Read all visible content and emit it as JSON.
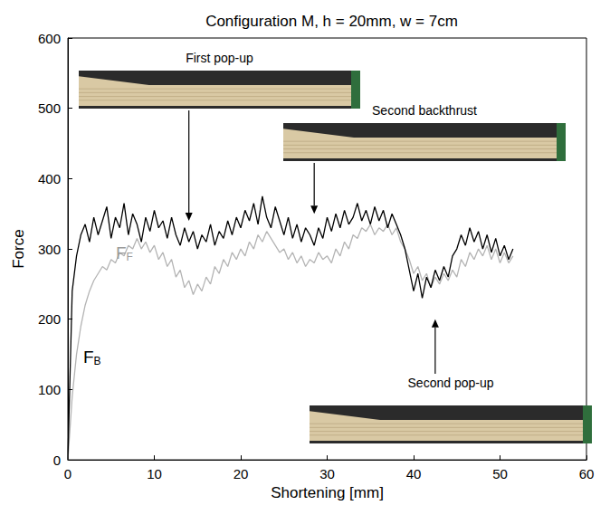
{
  "chart_data": {
    "type": "line",
    "title": "Configuration M, h = 20mm, w = 7cm",
    "x_label": "Shortening [mm]",
    "y_label": "Force",
    "xlim": [
      0,
      60
    ],
    "xticks": [
      0,
      10,
      20,
      30,
      40,
      50,
      60
    ],
    "ylim": [
      0,
      600
    ],
    "yticks": [
      0,
      100,
      200,
      300,
      400,
      500,
      600
    ],
    "grid": false,
    "x": [
      0,
      0.5,
      1,
      1.5,
      2,
      2.5,
      3,
      3.5,
      4,
      4.5,
      5,
      5.5,
      6,
      6.5,
      7,
      7.5,
      8,
      8.5,
      9,
      9.5,
      10,
      10.5,
      11,
      11.5,
      12,
      12.5,
      13,
      13.5,
      14,
      14.5,
      15,
      15.5,
      16,
      16.5,
      17,
      17.5,
      18,
      18.5,
      19,
      19.5,
      20,
      20.5,
      21,
      21.5,
      22,
      22.5,
      23,
      23.5,
      24,
      24.5,
      25,
      25.5,
      26,
      26.5,
      27,
      27.5,
      28,
      28.5,
      29,
      29.5,
      30,
      30.5,
      31,
      31.5,
      32,
      32.5,
      33,
      33.5,
      34,
      34.5,
      35,
      35.5,
      36,
      36.5,
      37,
      37.5,
      38,
      38.5,
      39,
      39.5,
      40,
      40.5,
      41,
      41.5,
      42,
      42.5,
      43,
      43.5,
      44,
      44.5,
      45,
      45.5,
      46,
      46.5,
      47,
      47.5,
      48,
      48.5,
      49,
      49.5,
      50,
      50.5,
      51,
      51.5
    ],
    "series": [
      {
        "name": "FB",
        "color": "#000000",
        "values": [
          0,
          240,
          290,
          320,
          335,
          310,
          345,
          320,
          340,
          360,
          315,
          345,
          330,
          365,
          320,
          350,
          335,
          310,
          345,
          325,
          355,
          330,
          340,
          315,
          345,
          320,
          305,
          330,
          310,
          325,
          300,
          320,
          310,
          335,
          305,
          325,
          315,
          340,
          320,
          345,
          330,
          355,
          340,
          365,
          335,
          375,
          345,
          330,
          360,
          340,
          320,
          345,
          315,
          335,
          310,
          330,
          320,
          305,
          330,
          315,
          345,
          325,
          350,
          330,
          355,
          335,
          345,
          365,
          340,
          355,
          335,
          360,
          340,
          355,
          330,
          350,
          335,
          320,
          300,
          270,
          240,
          265,
          230,
          260,
          245,
          270,
          255,
          275,
          260,
          290,
          300,
          320,
          305,
          330,
          310,
          325,
          300,
          320,
          295,
          315,
          290,
          305,
          285,
          300
        ]
      },
      {
        "name": "FF",
        "color": "#b4b4b4",
        "values": [
          0,
          90,
          150,
          190,
          220,
          240,
          255,
          265,
          275,
          270,
          285,
          280,
          295,
          290,
          305,
          300,
          315,
          300,
          310,
          295,
          305,
          285,
          295,
          275,
          285,
          260,
          270,
          245,
          255,
          235,
          250,
          240,
          260,
          250,
          275,
          265,
          285,
          275,
          295,
          285,
          300,
          290,
          310,
          300,
          320,
          310,
          325,
          315,
          305,
          295,
          300,
          285,
          295,
          280,
          290,
          275,
          285,
          280,
          295,
          285,
          290,
          280,
          300,
          290,
          310,
          300,
          320,
          315,
          330,
          325,
          335,
          320,
          330,
          325,
          335,
          320,
          330,
          310,
          300,
          285,
          265,
          275,
          255,
          265,
          245,
          260,
          250,
          265,
          255,
          270,
          260,
          285,
          275,
          295,
          285,
          300,
          290,
          305,
          285,
          300,
          280,
          295,
          280,
          290
        ]
      }
    ],
    "annotations": [
      {
        "text": "First pop-up",
        "x": 14,
        "y": 340
      },
      {
        "text": "Second backthrust",
        "x": 28.5,
        "y": 350
      },
      {
        "text": "Second pop-up",
        "x": 42.5,
        "y": 200
      }
    ]
  }
}
